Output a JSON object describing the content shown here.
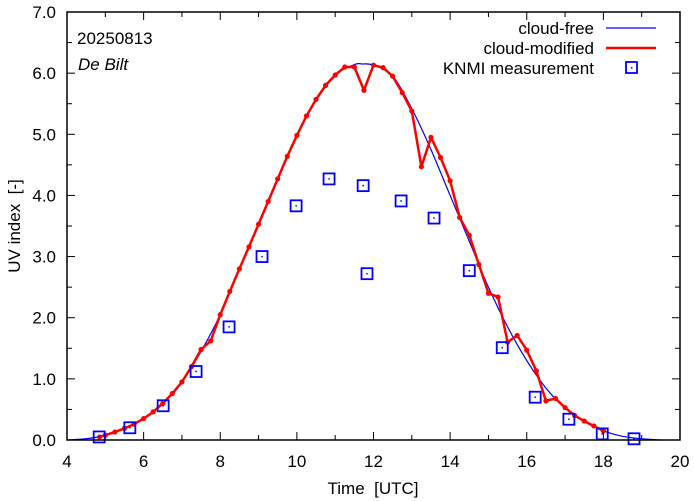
{
  "chart_data": {
    "type": "line",
    "title": "",
    "annotations": [
      "20250813",
      "De Bilt"
    ],
    "xlabel": "Time  [UTC]",
    "ylabel": "UV index  [-]",
    "xlim": [
      4,
      20
    ],
    "ylim": [
      0,
      7
    ],
    "xticks": [
      4,
      6,
      8,
      10,
      12,
      14,
      16,
      18,
      20
    ],
    "xtick_labels": [
      "4",
      "6",
      "8",
      "10",
      "12",
      "14",
      "16",
      "18",
      "20"
    ],
    "yticks": [
      0,
      1,
      2,
      3,
      4,
      5,
      6,
      7
    ],
    "ytick_labels": [
      "0.0",
      "1.0",
      "2.0",
      "3.0",
      "4.0",
      "5.0",
      "6.0",
      "7.0"
    ],
    "grid": false,
    "legend_position": "top-right",
    "colors": {
      "cloud_free": "#0000ff",
      "cloud_modified": "#ff0000",
      "measurement": "#0000ff",
      "axis": "#000000"
    },
    "series": [
      {
        "name": "cloud-free",
        "style": "line",
        "peak_time": 11.7,
        "peak_value": 6.15,
        "x": [
          4.0,
          4.5,
          5.0,
          5.5,
          6.0,
          6.5,
          7.0,
          7.5,
          8.0,
          8.5,
          9.0,
          9.5,
          10.0,
          10.5,
          11.0,
          11.5,
          11.7,
          12.0,
          12.5,
          13.0,
          13.5,
          14.0,
          14.5,
          15.0,
          15.5,
          16.0,
          16.5,
          17.0,
          17.5,
          18.0,
          18.5,
          19.0,
          19.5
        ],
        "values": [
          0.0,
          0.02,
          0.08,
          0.19,
          0.35,
          0.6,
          0.95,
          1.45,
          2.05,
          2.8,
          3.53,
          4.27,
          4.98,
          5.57,
          5.97,
          6.14,
          6.15,
          6.13,
          5.95,
          5.42,
          4.75,
          4.0,
          3.25,
          2.5,
          1.85,
          1.3,
          0.85,
          0.52,
          0.3,
          0.15,
          0.06,
          0.02,
          0.0
        ]
      },
      {
        "name": "cloud-modified",
        "style": "line-points",
        "x": [
          4.85,
          5.0,
          5.25,
          5.5,
          5.75,
          6.0,
          6.25,
          6.5,
          6.75,
          7.0,
          7.25,
          7.5,
          7.75,
          8.0,
          8.25,
          8.5,
          8.75,
          9.0,
          9.25,
          9.5,
          9.75,
          10.0,
          10.25,
          10.5,
          10.75,
          11.0,
          11.25,
          11.5,
          11.75,
          12.0,
          12.25,
          12.5,
          12.75,
          13.0,
          13.25,
          13.5,
          13.75,
          14.0,
          14.25,
          14.5,
          14.75,
          15.0,
          15.25,
          15.5,
          15.75,
          16.0,
          16.25,
          16.5,
          16.75,
          17.0,
          17.25,
          17.5,
          17.75,
          18.0
        ],
        "values": [
          0.05,
          0.08,
          0.13,
          0.19,
          0.26,
          0.35,
          0.46,
          0.6,
          0.76,
          0.95,
          1.2,
          1.48,
          1.62,
          2.05,
          2.43,
          2.8,
          3.16,
          3.53,
          3.9,
          4.27,
          4.64,
          4.98,
          5.3,
          5.57,
          5.8,
          5.97,
          6.1,
          6.1,
          5.72,
          6.13,
          6.09,
          5.95,
          5.68,
          5.38,
          4.47,
          4.95,
          4.62,
          4.24,
          3.64,
          3.35,
          2.87,
          2.4,
          2.34,
          1.6,
          1.71,
          1.47,
          1.13,
          0.64,
          0.68,
          0.53,
          0.4,
          0.31,
          0.23,
          0.15
        ]
      },
      {
        "name": "KNMI measurement",
        "style": "square-markers",
        "x": [
          4.84,
          5.64,
          6.51,
          7.37,
          8.23,
          9.09,
          9.98,
          10.84,
          11.73,
          11.83,
          12.72,
          13.58,
          14.5,
          15.36,
          16.22,
          17.1,
          17.97,
          18.8
        ],
        "values": [
          0.05,
          0.2,
          0.56,
          1.12,
          1.85,
          3.0,
          3.83,
          4.27,
          4.16,
          2.72,
          3.91,
          3.63,
          2.77,
          1.51,
          0.7,
          0.34,
          0.1,
          0.02
        ]
      }
    ],
    "legend": [
      "cloud-free",
      "cloud-modified",
      "KNMI measurement"
    ]
  }
}
